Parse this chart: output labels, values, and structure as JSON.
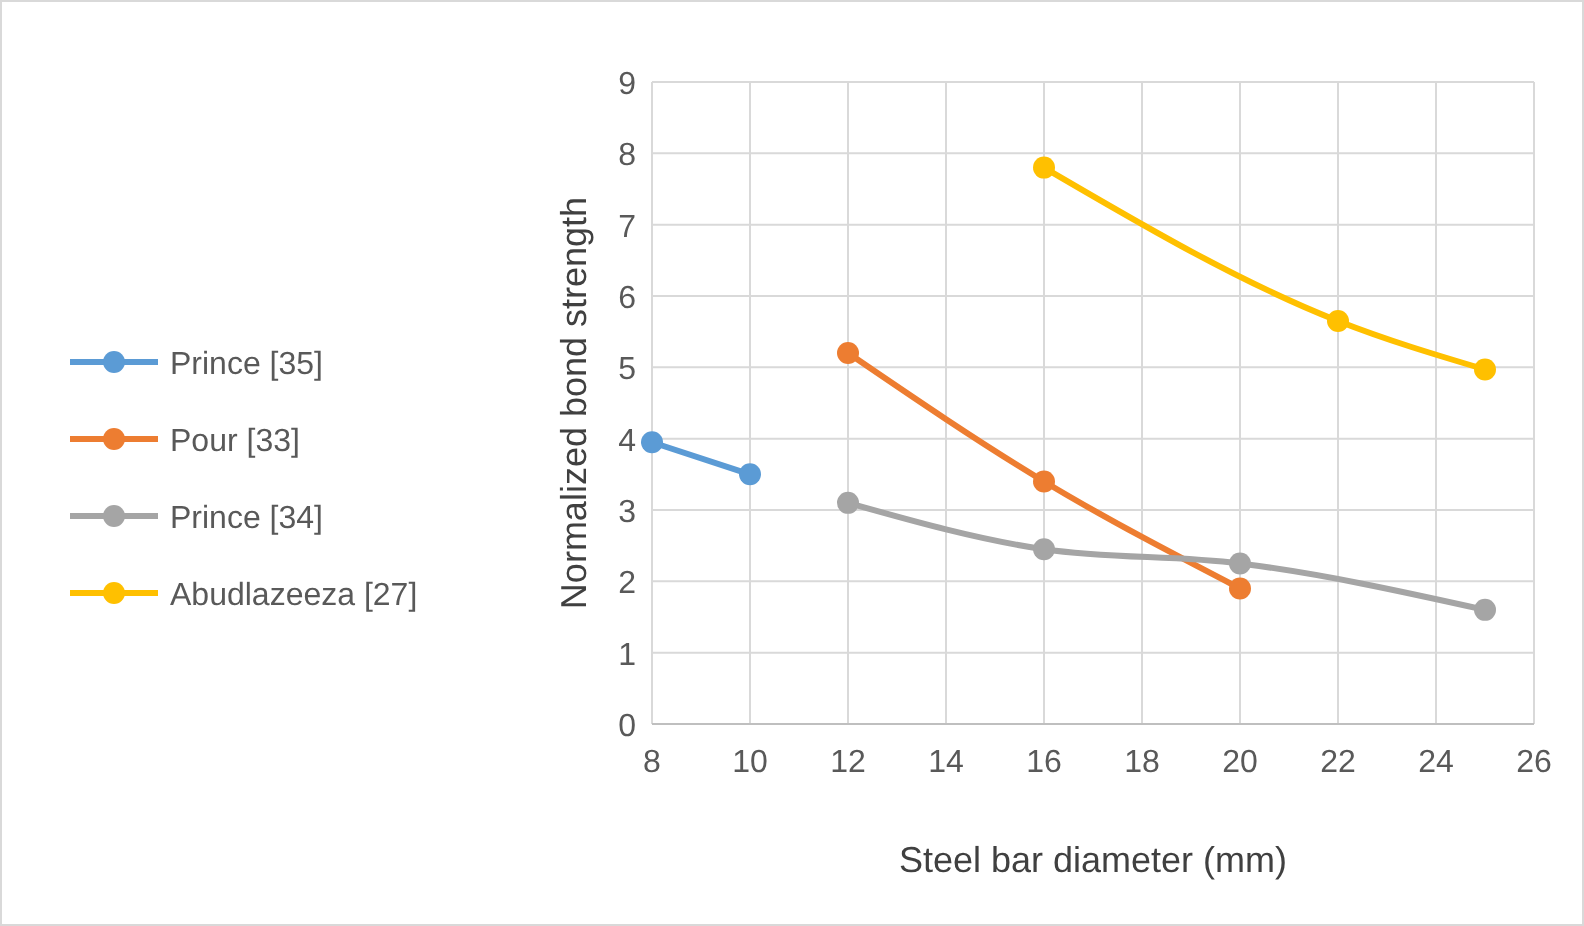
{
  "chart_data": {
    "type": "line",
    "xlabel": "Steel bar diameter (mm)",
    "ylabel": "Normalized bond strength",
    "xlim": [
      8,
      26
    ],
    "xticks": [
      8,
      10,
      12,
      14,
      16,
      18,
      20,
      22,
      24,
      26
    ],
    "ylim": [
      0,
      9
    ],
    "yticks": [
      0,
      1,
      2,
      3,
      4,
      5,
      6,
      7,
      8,
      9
    ],
    "grid": true,
    "legend": "left",
    "marker": "circle",
    "line_style": "solid",
    "series": [
      {
        "name": "Prince [35]",
        "color": "#5b9bd5",
        "x": [
          8,
          10
        ],
        "values": [
          3.95,
          3.5
        ]
      },
      {
        "name": "Pour [33]",
        "color": "#ed7d31",
        "x": [
          12,
          16,
          20
        ],
        "values": [
          5.2,
          3.4,
          1.9
        ]
      },
      {
        "name": "Prince [34]",
        "color": "#a5a5a5",
        "x": [
          12,
          16,
          20,
          25
        ],
        "values": [
          3.1,
          2.45,
          2.25,
          1.6
        ]
      },
      {
        "name": "Abudlazeeza [27]",
        "color": "#ffc000",
        "x": [
          16,
          22,
          25
        ],
        "values": [
          7.8,
          5.65,
          4.97
        ]
      }
    ]
  }
}
